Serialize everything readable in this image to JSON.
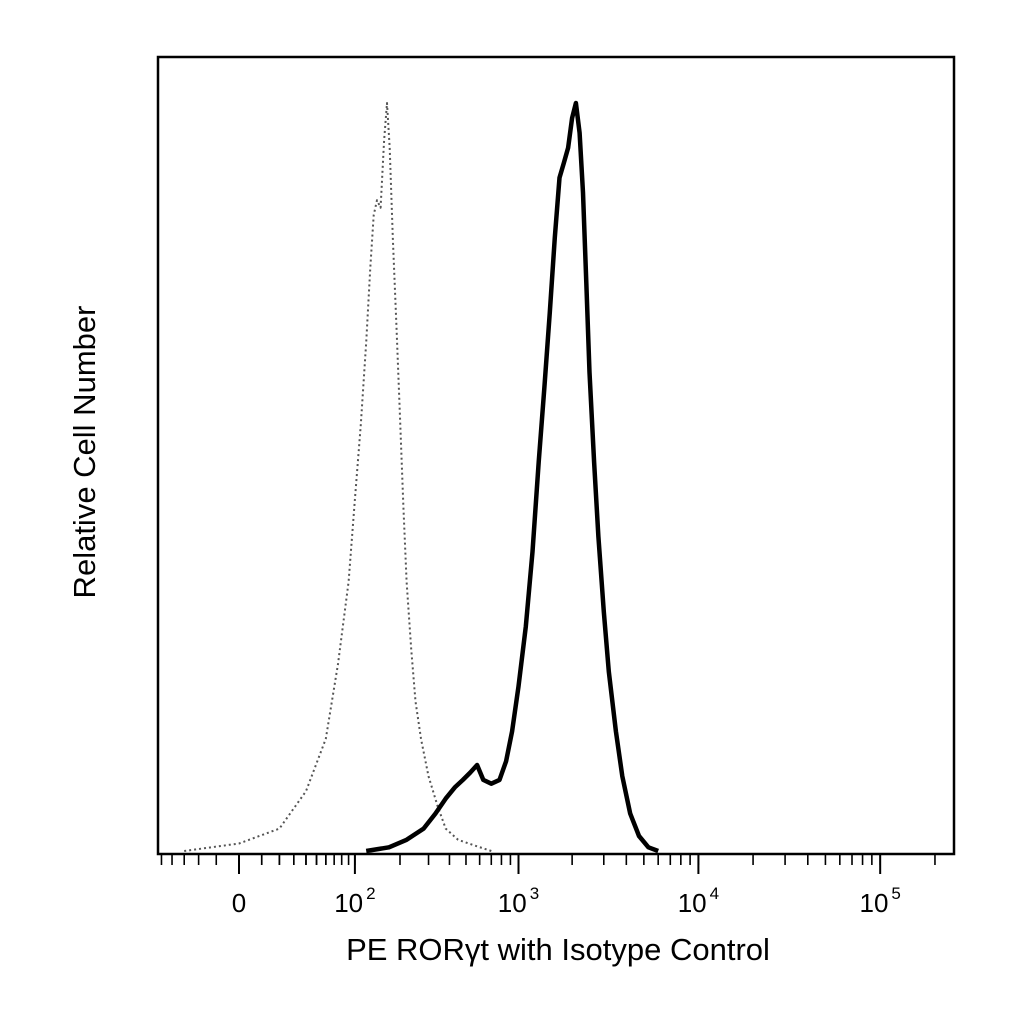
{
  "chart_data": {
    "type": "line",
    "title": "",
    "xlabel": "PE RORγt with Isotype Control",
    "ylabel": "Relative Cell Number",
    "x_scale": "biexponential",
    "x_major_ticks": [
      {
        "value": 0,
        "base": "0",
        "exp": ""
      },
      {
        "value": 100,
        "base": "10",
        "exp": "2"
      },
      {
        "value": 1000,
        "base": "10",
        "exp": "3"
      },
      {
        "value": 10000,
        "base": "10",
        "exp": "4"
      },
      {
        "value": 100000,
        "base": "10",
        "exp": "5"
      }
    ],
    "x_range": [
      -70,
      250000
    ],
    "ylim": [
      0,
      100
    ],
    "y_ticks_shown": false,
    "grid": false,
    "legend": "none",
    "series": [
      {
        "style": "dotted-thin",
        "color": "#555555",
        "x": [
          -30,
          0,
          20,
          40,
          60,
          75,
          90,
          100,
          110,
          120,
          128,
          135,
          142,
          150,
          158,
          165,
          172,
          180,
          190,
          200,
          210,
          220,
          235,
          250,
          270,
          300,
          340,
          380,
          450,
          550,
          700
        ],
        "y": [
          0,
          1,
          3,
          8,
          15,
          25,
          36,
          47,
          57,
          68,
          78,
          85,
          87,
          86,
          95,
          100,
          94,
          82,
          70,
          58,
          46,
          36,
          27,
          20,
          15,
          10,
          6,
          3,
          1.5,
          0.8,
          0
        ]
      },
      {
        "style": "solid-thick",
        "color": "#000000",
        "x": [
          120,
          170,
          220,
          280,
          330,
          380,
          430,
          480,
          530,
          580,
          630,
          700,
          780,
          850,
          920,
          1000,
          1100,
          1200,
          1300,
          1400,
          1500,
          1600,
          1700,
          1800,
          1900,
          2000,
          2100,
          2200,
          2300,
          2400,
          2500,
          2650,
          2800,
          3000,
          3200,
          3500,
          3800,
          4200,
          4700,
          5300,
          6000
        ],
        "y": [
          0,
          0.5,
          1.5,
          3,
          5,
          7,
          8.5,
          9.5,
          10.5,
          11.5,
          9.5,
          9,
          9.5,
          12,
          16,
          22,
          30,
          40,
          52,
          62,
          72,
          82,
          90,
          92,
          94,
          98,
          100,
          96,
          88,
          76,
          64,
          52,
          42,
          32,
          24,
          16,
          10,
          5,
          2,
          0.5,
          0
        ]
      }
    ]
  }
}
